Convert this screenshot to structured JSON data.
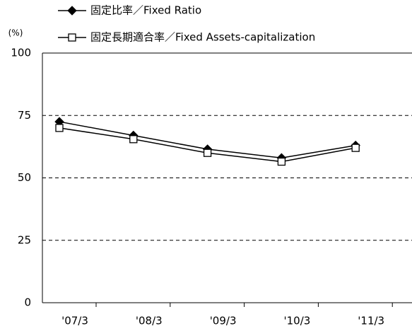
{
  "chart_data": {
    "type": "line",
    "y_label": "(%)",
    "categories": [
      "'07/3",
      "'08/3",
      "'09/3",
      "'10/3",
      "'11/3"
    ],
    "series": [
      {
        "name": "固定比率／Fixed Ratio",
        "color": "#000000",
        "marker": "diamond",
        "marker_fill": "#000000",
        "values": [
          72.5,
          67,
          61.5,
          58,
          63
        ]
      },
      {
        "name": "固定長期適合率／Fixed Assets-capitalization",
        "color": "#000000",
        "marker": "square",
        "marker_fill": "#ffffff",
        "values": [
          70,
          65.5,
          60,
          56.5,
          62
        ]
      }
    ],
    "ylim": [
      0,
      100
    ],
    "yticks": [
      0,
      25,
      50,
      75,
      100
    ],
    "grid": true,
    "legend": "top-left"
  }
}
